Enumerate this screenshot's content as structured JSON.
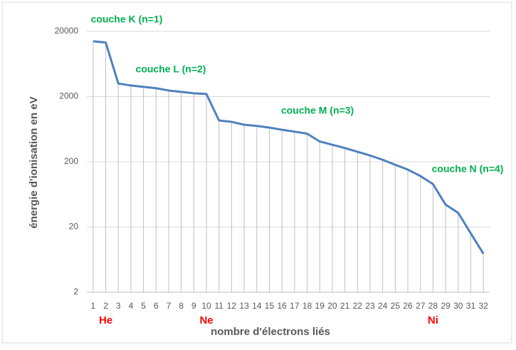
{
  "chart_data": {
    "type": "line",
    "x_label": "nombre d'électrons liés",
    "y_label": "énergie d'ionisation en eV",
    "categories": [
      1,
      2,
      3,
      4,
      5,
      6,
      7,
      8,
      9,
      10,
      11,
      12,
      13,
      14,
      15,
      16,
      17,
      18,
      19,
      20,
      21,
      22,
      23,
      24,
      25,
      26,
      27,
      28,
      29,
      30,
      31,
      32
    ],
    "series": [
      {
        "name": "énergie d'ionisation",
        "color": "#4f81bd",
        "values": [
          14100,
          13500,
          3170,
          2960,
          2820,
          2690,
          2480,
          2360,
          2250,
          2190,
          860,
          820,
          740,
          710,
          670,
          620,
          580,
          540,
          410,
          365,
          325,
          285,
          250,
          215,
          180,
          152,
          121,
          91,
          44,
          33,
          16,
          7.8
        ]
      }
    ],
    "log_y": true,
    "ylim": [
      2,
      20000
    ],
    "yticks": [
      2,
      20,
      200,
      2000,
      20000
    ],
    "grid": true,
    "drop_lines": true,
    "annotations": [
      "couche K (n=1)",
      "couche L (n=2)",
      "couche M (n=3)",
      "couche N (n=4)"
    ],
    "annotation_color": "#00b050",
    "element_labels": [
      "He",
      "Ne",
      "Ni"
    ],
    "element_color": "#ff0000"
  }
}
